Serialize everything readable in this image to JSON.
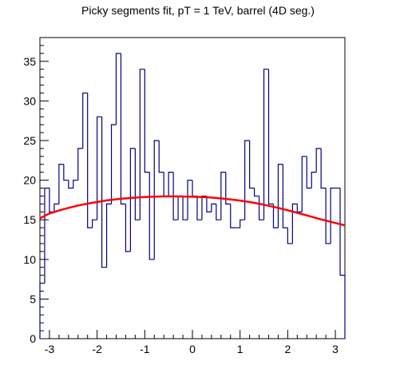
{
  "chart_data": {
    "type": "histogram",
    "title": "Picky segments fit, pT = 1 TeV, barrel (4D seg.)",
    "xlabel": "",
    "ylabel": "",
    "xlim": [
      -3.2,
      3.2
    ],
    "ylim": [
      0,
      38
    ],
    "bin_width": 0.1,
    "x_ticks": [
      -3,
      -2,
      -1,
      0,
      1,
      2,
      3
    ],
    "y_ticks": [
      0,
      5,
      10,
      15,
      20,
      25,
      30,
      35
    ],
    "histogram_color": "#000080",
    "fit_color": "#ff0000",
    "bins": [
      {
        "x0": -3.3,
        "x1": -3.2,
        "y": 1
      },
      {
        "x0": -3.2,
        "x1": -3.1,
        "y": 7
      },
      {
        "x0": -3.1,
        "x1": -3.0,
        "y": 19
      },
      {
        "x0": -3.0,
        "x1": -2.9,
        "y": 16
      },
      {
        "x0": -2.9,
        "x1": -2.8,
        "y": 17
      },
      {
        "x0": -2.8,
        "x1": -2.7,
        "y": 22
      },
      {
        "x0": -2.7,
        "x1": -2.6,
        "y": 20
      },
      {
        "x0": -2.6,
        "x1": -2.5,
        "y": 19
      },
      {
        "x0": -2.5,
        "x1": -2.4,
        "y": 20
      },
      {
        "x0": -2.4,
        "x1": -2.3,
        "y": 24
      },
      {
        "x0": -2.3,
        "x1": -2.2,
        "y": 31
      },
      {
        "x0": -2.2,
        "x1": -2.1,
        "y": 14
      },
      {
        "x0": -2.1,
        "x1": -2.0,
        "y": 15
      },
      {
        "x0": -2.0,
        "x1": -1.9,
        "y": 28
      },
      {
        "x0": -1.9,
        "x1": -1.8,
        "y": 9
      },
      {
        "x0": -1.8,
        "x1": -1.7,
        "y": 17
      },
      {
        "x0": -1.7,
        "x1": -1.6,
        "y": 27
      },
      {
        "x0": -1.6,
        "x1": -1.5,
        "y": 36
      },
      {
        "x0": -1.5,
        "x1": -1.4,
        "y": 17
      },
      {
        "x0": -1.4,
        "x1": -1.3,
        "y": 11
      },
      {
        "x0": -1.3,
        "x1": -1.2,
        "y": 24
      },
      {
        "x0": -1.2,
        "x1": -1.1,
        "y": 15
      },
      {
        "x0": -1.1,
        "x1": -1.0,
        "y": 34
      },
      {
        "x0": -1.0,
        "x1": -0.9,
        "y": 21
      },
      {
        "x0": -0.9,
        "x1": -0.8,
        "y": 10
      },
      {
        "x0": -0.8,
        "x1": -0.7,
        "y": 25
      },
      {
        "x0": -0.7,
        "x1": -0.6,
        "y": 21
      },
      {
        "x0": -0.6,
        "x1": -0.5,
        "y": 18
      },
      {
        "x0": -0.5,
        "x1": -0.4,
        "y": 21
      },
      {
        "x0": -0.4,
        "x1": -0.3,
        "y": 15
      },
      {
        "x0": -0.3,
        "x1": -0.2,
        "y": 18
      },
      {
        "x0": -0.2,
        "x1": -0.1,
        "y": 15
      },
      {
        "x0": -0.1,
        "x1": 0.0,
        "y": 20
      },
      {
        "x0": 0.0,
        "x1": 0.1,
        "y": 18
      },
      {
        "x0": 0.1,
        "x1": 0.2,
        "y": 15
      },
      {
        "x0": 0.2,
        "x1": 0.3,
        "y": 18
      },
      {
        "x0": 0.3,
        "x1": 0.4,
        "y": 16
      },
      {
        "x0": 0.4,
        "x1": 0.5,
        "y": 17
      },
      {
        "x0": 0.5,
        "x1": 0.6,
        "y": 15
      },
      {
        "x0": 0.6,
        "x1": 0.7,
        "y": 21
      },
      {
        "x0": 0.7,
        "x1": 0.8,
        "y": 17
      },
      {
        "x0": 0.8,
        "x1": 0.9,
        "y": 14
      },
      {
        "x0": 0.9,
        "x1": 1.0,
        "y": 14
      },
      {
        "x0": 1.0,
        "x1": 1.1,
        "y": 15
      },
      {
        "x0": 1.1,
        "x1": 1.2,
        "y": 25
      },
      {
        "x0": 1.2,
        "x1": 1.3,
        "y": 19
      },
      {
        "x0": 1.3,
        "x1": 1.4,
        "y": 18
      },
      {
        "x0": 1.4,
        "x1": 1.5,
        "y": 15
      },
      {
        "x0": 1.5,
        "x1": 1.6,
        "y": 34
      },
      {
        "x0": 1.6,
        "x1": 1.7,
        "y": 17
      },
      {
        "x0": 1.7,
        "x1": 1.8,
        "y": 14
      },
      {
        "x0": 1.8,
        "x1": 1.9,
        "y": 22
      },
      {
        "x0": 1.9,
        "x1": 2.0,
        "y": 14
      },
      {
        "x0": 2.0,
        "x1": 2.1,
        "y": 12
      },
      {
        "x0": 2.1,
        "x1": 2.2,
        "y": 17
      },
      {
        "x0": 2.2,
        "x1": 2.3,
        "y": 16
      },
      {
        "x0": 2.3,
        "x1": 2.4,
        "y": 23
      },
      {
        "x0": 2.4,
        "x1": 2.5,
        "y": 19
      },
      {
        "x0": 2.5,
        "x1": 2.6,
        "y": 21
      },
      {
        "x0": 2.6,
        "x1": 2.7,
        "y": 24
      },
      {
        "x0": 2.7,
        "x1": 2.8,
        "y": 19
      },
      {
        "x0": 2.8,
        "x1": 2.9,
        "y": 12
      },
      {
        "x0": 2.9,
        "x1": 3.0,
        "y": 19
      },
      {
        "x0": 3.0,
        "x1": 3.1,
        "y": 19
      },
      {
        "x0": 3.1,
        "x1": 3.2,
        "y": 8
      },
      {
        "x0": 3.2,
        "x1": 3.3,
        "y": 0
      }
    ],
    "fit_curve": {
      "x": [
        -3.3,
        -3.0,
        -2.7,
        -2.4,
        -2.1,
        -1.8,
        -1.5,
        -1.2,
        -0.9,
        -0.6,
        -0.3,
        0.0,
        0.3,
        0.6,
        0.9,
        1.2,
        1.5,
        1.8,
        2.1,
        2.4,
        2.7,
        3.0,
        3.3
      ],
      "y": [
        15.2,
        15.8,
        16.35,
        16.8,
        17.15,
        17.45,
        17.65,
        17.8,
        17.9,
        17.95,
        17.95,
        17.9,
        17.85,
        17.7,
        17.5,
        17.25,
        16.9,
        16.5,
        16.05,
        15.55,
        15.05,
        14.6,
        14.3
      ]
    }
  }
}
